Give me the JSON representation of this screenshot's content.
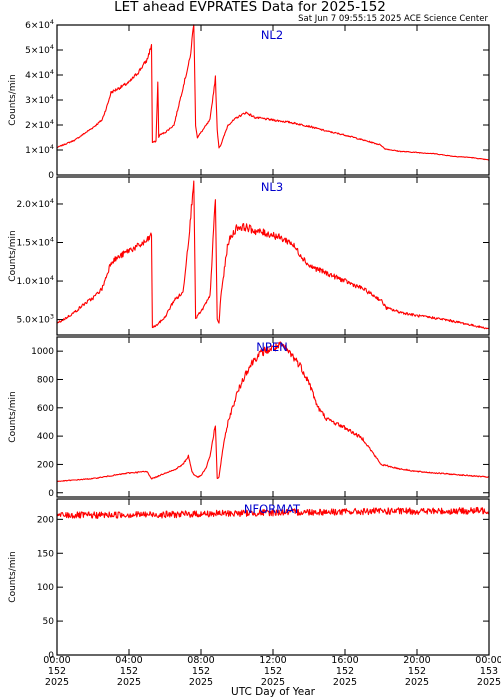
{
  "header": {
    "title": "LET ahead EVPRATES Data for 2025-152",
    "timestamp": "Sat Jun  7 09:55:15 2025 ACE Science Center"
  },
  "xaxis": {
    "label": "UTC Day of Year",
    "range_hours": [
      0,
      24
    ],
    "ticks": [
      {
        "hour": 0,
        "time": "00:00",
        "doy": "152",
        "year": "2025"
      },
      {
        "hour": 4,
        "time": "04:00",
        "doy": "152",
        "year": "2025"
      },
      {
        "hour": 8,
        "time": "08:00",
        "doy": "152",
        "year": "2025"
      },
      {
        "hour": 12,
        "time": "12:00",
        "doy": "152",
        "year": "2025"
      },
      {
        "hour": 16,
        "time": "16:00",
        "doy": "152",
        "year": "2025"
      },
      {
        "hour": 20,
        "time": "20:00",
        "doy": "152",
        "year": "2025"
      },
      {
        "hour": 24,
        "time": "00:00",
        "doy": "153",
        "year": "2025"
      }
    ]
  },
  "colors": {
    "trace": "#ff0000",
    "panel_label": "#0000cc",
    "axes": "#000000"
  },
  "chart_data": [
    {
      "type": "line",
      "panel_label": "NL2",
      "ylabel": "Counts/min",
      "ylim": [
        0,
        60000
      ],
      "yticks": [
        {
          "v": 0,
          "m": "0",
          "e": ""
        },
        {
          "v": 10000,
          "m": "1×10",
          "e": "4"
        },
        {
          "v": 20000,
          "m": "2×10",
          "e": "4"
        },
        {
          "v": 30000,
          "m": "3×10",
          "e": "4"
        },
        {
          "v": 40000,
          "m": "4×10",
          "e": "4"
        },
        {
          "v": 50000,
          "m": "5×10",
          "e": "4"
        },
        {
          "v": 60000,
          "m": "6×10",
          "e": "4"
        }
      ],
      "series": [
        {
          "x": [
            0,
            0.5,
            1,
            1.5,
            2,
            2.5,
            2.8,
            3,
            3.5,
            4,
            4.5,
            5,
            5.25,
            5.3,
            5.5,
            5.6,
            5.65,
            5.7,
            6,
            6.5,
            7,
            7.4,
            7.6,
            7.7,
            7.8,
            8,
            8.5,
            8.8,
            8.9,
            9,
            9.1,
            9.5,
            10,
            10.5,
            11,
            12,
            13,
            14,
            15,
            16,
            17,
            18,
            18.2,
            19,
            20,
            21,
            22,
            23,
            24
          ],
          "y": [
            11000,
            12500,
            14000,
            16500,
            19000,
            22000,
            28000,
            33000,
            35000,
            37000,
            41000,
            46000,
            52000,
            13000,
            13500,
            37000,
            15000,
            16000,
            17000,
            20000,
            35000,
            47000,
            61000,
            20000,
            15000,
            17000,
            22000,
            39000,
            18000,
            11000,
            12000,
            20000,
            23000,
            25000,
            23000,
            22000,
            21000,
            19500,
            17500,
            16000,
            14000,
            12000,
            10500,
            9500,
            9000,
            8500,
            7500,
            7000,
            6000
          ]
        }
      ]
    },
    {
      "type": "line",
      "panel_label": "NL3",
      "ylabel": "Counts/min",
      "ylim": [
        3000,
        23500
      ],
      "yticks": [
        {
          "v": 5000,
          "m": "5.0×10",
          "e": "3"
        },
        {
          "v": 10000,
          "m": "1.0×10",
          "e": "4"
        },
        {
          "v": 15000,
          "m": "1.5×10",
          "e": "4"
        },
        {
          "v": 20000,
          "m": "2.0×10",
          "e": "4"
        }
      ],
      "series": [
        {
          "x": [
            0,
            0.5,
            1,
            1.5,
            2,
            2.5,
            2.8,
            3,
            3.5,
            4,
            4.5,
            5,
            5.25,
            5.3,
            5.5,
            6,
            6.5,
            7,
            7.4,
            7.6,
            7.7,
            7.8,
            8,
            8.5,
            8.8,
            8.9,
            9,
            9.1,
            9.5,
            10,
            10.5,
            11,
            12,
            13,
            14,
            15,
            16,
            17,
            18,
            18.3,
            19,
            20,
            21,
            22,
            23,
            24
          ],
          "y": [
            4500,
            5200,
            6000,
            7000,
            7800,
            9000,
            11000,
            12500,
            13200,
            14000,
            14500,
            15200,
            16000,
            4000,
            4200,
            5300,
            7500,
            8500,
            17500,
            23500,
            5000,
            5500,
            6000,
            8000,
            20800,
            5000,
            4500,
            8000,
            15000,
            17000,
            17000,
            16500,
            16000,
            15000,
            12000,
            11000,
            10000,
            9000,
            7500,
            6500,
            6000,
            5500,
            5200,
            4800,
            4300,
            3800
          ]
        }
      ]
    },
    {
      "type": "line",
      "panel_label": "NPEN",
      "ylabel": "Counts/min",
      "ylim": [
        -30,
        1100
      ],
      "yticks": [
        {
          "v": 0,
          "m": "0",
          "e": ""
        },
        {
          "v": 200,
          "m": "200",
          "e": ""
        },
        {
          "v": 400,
          "m": "400",
          "e": ""
        },
        {
          "v": 600,
          "m": "600",
          "e": ""
        },
        {
          "v": 800,
          "m": "800",
          "e": ""
        },
        {
          "v": 1000,
          "m": "1000",
          "e": ""
        }
      ],
      "series": [
        {
          "x": [
            0,
            1,
            2,
            3,
            4,
            5,
            5.25,
            5.5,
            6,
            6.5,
            7,
            7.3,
            7.5,
            7.6,
            7.8,
            8,
            8.3,
            8.5,
            8.8,
            8.9,
            9,
            9.2,
            9.5,
            10,
            10.5,
            11,
            11.5,
            12,
            12.5,
            13,
            13.5,
            14,
            14.5,
            15,
            16,
            17,
            18,
            19,
            20,
            21,
            22,
            23,
            24
          ],
          "y": [
            80,
            90,
            100,
            120,
            140,
            150,
            100,
            110,
            140,
            160,
            200,
            260,
            150,
            130,
            110,
            120,
            180,
            260,
            480,
            100,
            110,
            300,
            500,
            700,
            850,
            950,
            1000,
            1020,
            1040,
            980,
            900,
            780,
            600,
            520,
            460,
            380,
            200,
            170,
            150,
            140,
            130,
            120,
            110
          ]
        }
      ]
    },
    {
      "type": "line",
      "panel_label": "NFORMAT",
      "ylabel": "Counts/min",
      "ylim": [
        0,
        230
      ],
      "yticks": [
        {
          "v": 0,
          "m": "0",
          "e": ""
        },
        {
          "v": 50,
          "m": "50",
          "e": ""
        },
        {
          "v": 100,
          "m": "100",
          "e": ""
        },
        {
          "v": 150,
          "m": "150",
          "e": ""
        },
        {
          "v": 200,
          "m": "200",
          "e": ""
        }
      ],
      "series": [
        {
          "x": [
            0,
            2,
            4,
            6,
            8,
            10,
            12,
            14,
            16,
            18,
            20,
            22,
            24
          ],
          "y": [
            206,
            206,
            207,
            207,
            208,
            209,
            210,
            211,
            211,
            212,
            212,
            212,
            213
          ]
        }
      ]
    }
  ]
}
